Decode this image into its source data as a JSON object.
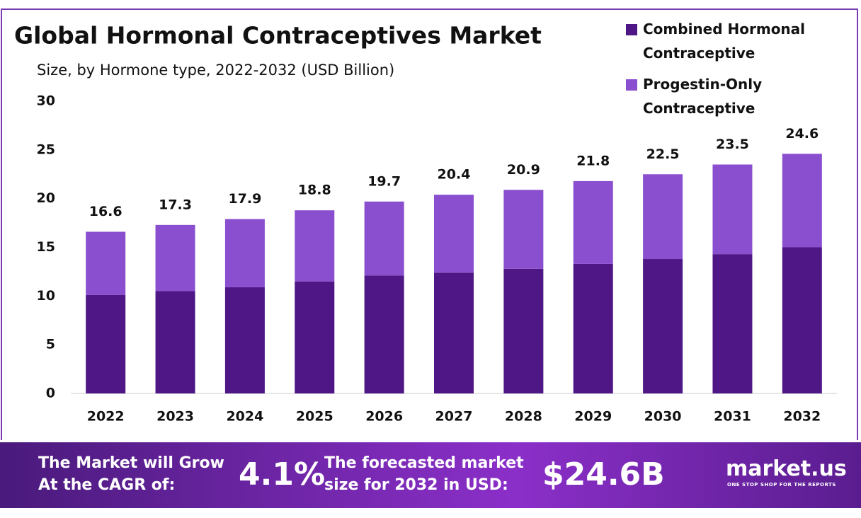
{
  "chart_data": {
    "type": "stacked_bar",
    "title": "Global Hormonal Contraceptives Market",
    "subtitle": "Size, by Hormone type, 2022-2032 (USD Billion)",
    "categories": [
      "2022",
      "2023",
      "2024",
      "2025",
      "2026",
      "2027",
      "2028",
      "2029",
      "2030",
      "2031",
      "2032"
    ],
    "series": [
      {
        "name": "Combined Hormonal Contraceptive",
        "color": "#4e1785",
        "values": [
          10.1,
          10.5,
          10.9,
          11.5,
          12.1,
          12.4,
          12.8,
          13.3,
          13.8,
          14.3,
          15.0
        ]
      },
      {
        "name": "Progestin-Only Contraceptive",
        "color": "#8a4fcf",
        "values": [
          6.5,
          6.8,
          7.0,
          7.3,
          7.6,
          8.0,
          8.1,
          8.5,
          8.7,
          9.2,
          9.6
        ]
      }
    ],
    "totals": [
      16.6,
      17.3,
      17.9,
      18.8,
      19.7,
      20.4,
      20.9,
      21.8,
      22.5,
      23.5,
      24.6
    ],
    "ylim": [
      0,
      30
    ],
    "yticks": [
      0,
      5,
      10,
      15,
      20,
      25,
      30
    ],
    "grid": false,
    "legend": "top-right"
  },
  "footer": {
    "cagr_text": "The Market will Grow At the CAGR of:",
    "cagr": "4.1%",
    "forecast_text": "The forecasted market size for 2032 in USD:",
    "forecast": "$24.6B",
    "brand": "market.us",
    "tagline": "ONE STOP SHOP FOR THE REPORTS"
  }
}
